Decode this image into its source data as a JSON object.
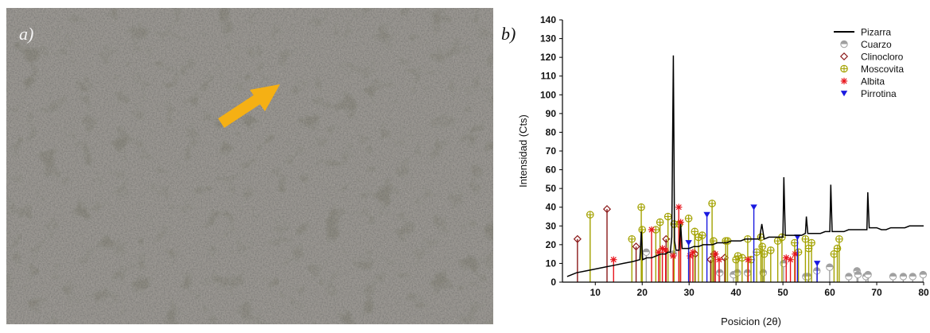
{
  "panels": {
    "a_label": "a)",
    "b_label": "b)"
  },
  "photo": {
    "arrow_color": "#f5b014"
  },
  "chart_data": {
    "type": "line",
    "xlabel": "Posicion (2θ)",
    "ylabel": "Intensidad (Cts)",
    "xlim": [
      3,
      80
    ],
    "ylim": [
      0,
      140
    ],
    "xticks": [
      10,
      20,
      30,
      40,
      50,
      60,
      70,
      80
    ],
    "yticks": [
      0,
      10,
      20,
      30,
      40,
      50,
      60,
      70,
      80,
      90,
      100,
      110,
      120,
      130,
      140
    ],
    "legend_position": "top-right",
    "grid": false,
    "series": [
      {
        "name": "Pizarra",
        "color": "#000000",
        "x": [
          4,
          6,
          8,
          10,
          12,
          14,
          16,
          18,
          19.5,
          19.8,
          20.1,
          21,
          22,
          23,
          24,
          25,
          25.5,
          26,
          26.3,
          26.65,
          26.9,
          27.2,
          27.9,
          28.2,
          28.5,
          29,
          30,
          31,
          32,
          33,
          34,
          35,
          36,
          37,
          38,
          39,
          40,
          41,
          42,
          43,
          44,
          45,
          45.5,
          46,
          47,
          48,
          49,
          50,
          50.2,
          50.5,
          51,
          52,
          53,
          54,
          54.8,
          55,
          55.3,
          56,
          57,
          58,
          59,
          60,
          60.2,
          60.5,
          61,
          62,
          63,
          64,
          65,
          66,
          67,
          67.9,
          68.1,
          68.4,
          69,
          70,
          71,
          72,
          73,
          74,
          75,
          76,
          77,
          78,
          79,
          80
        ],
        "y": [
          3,
          5,
          6,
          7,
          8,
          9,
          10,
          11,
          12,
          27,
          12,
          13,
          13,
          14,
          15,
          15,
          16,
          16,
          24,
          121,
          22,
          17,
          17,
          31,
          18,
          18,
          18,
          19,
          19,
          20,
          20,
          20,
          21,
          21,
          21,
          22,
          22,
          22,
          23,
          23,
          23,
          23,
          31,
          23,
          24,
          24,
          24,
          24,
          56,
          25,
          25,
          25,
          25,
          25,
          26,
          35,
          26,
          26,
          26,
          26,
          27,
          27,
          52,
          27,
          27,
          27,
          27,
          28,
          28,
          28,
          28,
          28,
          48,
          29,
          29,
          29,
          28,
          28,
          29,
          29,
          29,
          29,
          30,
          30,
          30,
          30
        ]
      },
      {
        "name": "Cuarzo",
        "color": "#a0a0a0",
        "marker": "circle-half",
        "x": [
          20.86,
          26.64,
          36.54,
          39.46,
          40.29,
          42.45,
          45.79,
          50.14,
          54.87,
          55.33,
          57.23,
          59.96,
          64.04,
          65.79,
          66.0,
          67.7,
          68.14,
          73.47,
          75.66,
          77.67,
          79.88
        ],
        "y": [
          16,
          15,
          5,
          4,
          5,
          5,
          5,
          10,
          3,
          3,
          6,
          8,
          3,
          6,
          4,
          3,
          4,
          3,
          3,
          3,
          4
        ]
      },
      {
        "name": "Clinocloro",
        "color": "#8b1a1a",
        "marker": "diamond",
        "x": [
          6.2,
          12.5,
          18.7,
          25.1,
          31.3,
          34.6,
          35.3,
          37.6
        ],
        "y": [
          23,
          39,
          19,
          23,
          15,
          12,
          15,
          13
        ]
      },
      {
        "name": "Moscovita",
        "color": "#a3a200",
        "marker": "circle-plus",
        "x": [
          8.9,
          17.8,
          19.8,
          20.0,
          22.9,
          23.8,
          25.5,
          26.8,
          27.9,
          29.9,
          31.2,
          32.0,
          32.8,
          34.9,
          35.2,
          37.8,
          38.2,
          40.0,
          40.4,
          41.3,
          42.5,
          43.2,
          44.4,
          45.3,
          45.6,
          46.0,
          47.4,
          48.9,
          49.8,
          52.5,
          53.3,
          54.8,
          55.5,
          56.1,
          60.9,
          61.6,
          62.0
        ],
        "y": [
          36,
          23,
          40,
          28,
          28,
          32,
          35,
          31,
          31,
          34,
          27,
          24,
          25,
          42,
          22,
          22,
          22,
          12,
          14,
          13,
          23,
          12,
          16,
          24,
          19,
          15,
          17,
          22,
          24,
          21,
          16,
          23,
          18,
          21,
          15,
          18,
          23
        ]
      },
      {
        "name": "Albita",
        "color": "#e8141c",
        "marker": "asterisk",
        "x": [
          13.9,
          22.0,
          23.5,
          24.3,
          25.0,
          26.6,
          27.8,
          28.2,
          30.2,
          30.8,
          35.6,
          36.4,
          42.6,
          50.7,
          51.6,
          52.6
        ],
        "y": [
          12,
          28,
          16,
          18,
          17,
          14,
          40,
          32,
          14,
          16,
          15,
          12,
          12,
          13,
          12,
          15
        ]
      },
      {
        "name": "Pirrotina",
        "color": "#1a1ae0",
        "marker": "triangle-down",
        "x": [
          29.9,
          33.8,
          43.8,
          53.1,
          57.3
        ],
        "y": [
          21,
          36,
          40,
          24,
          10
        ]
      }
    ]
  }
}
